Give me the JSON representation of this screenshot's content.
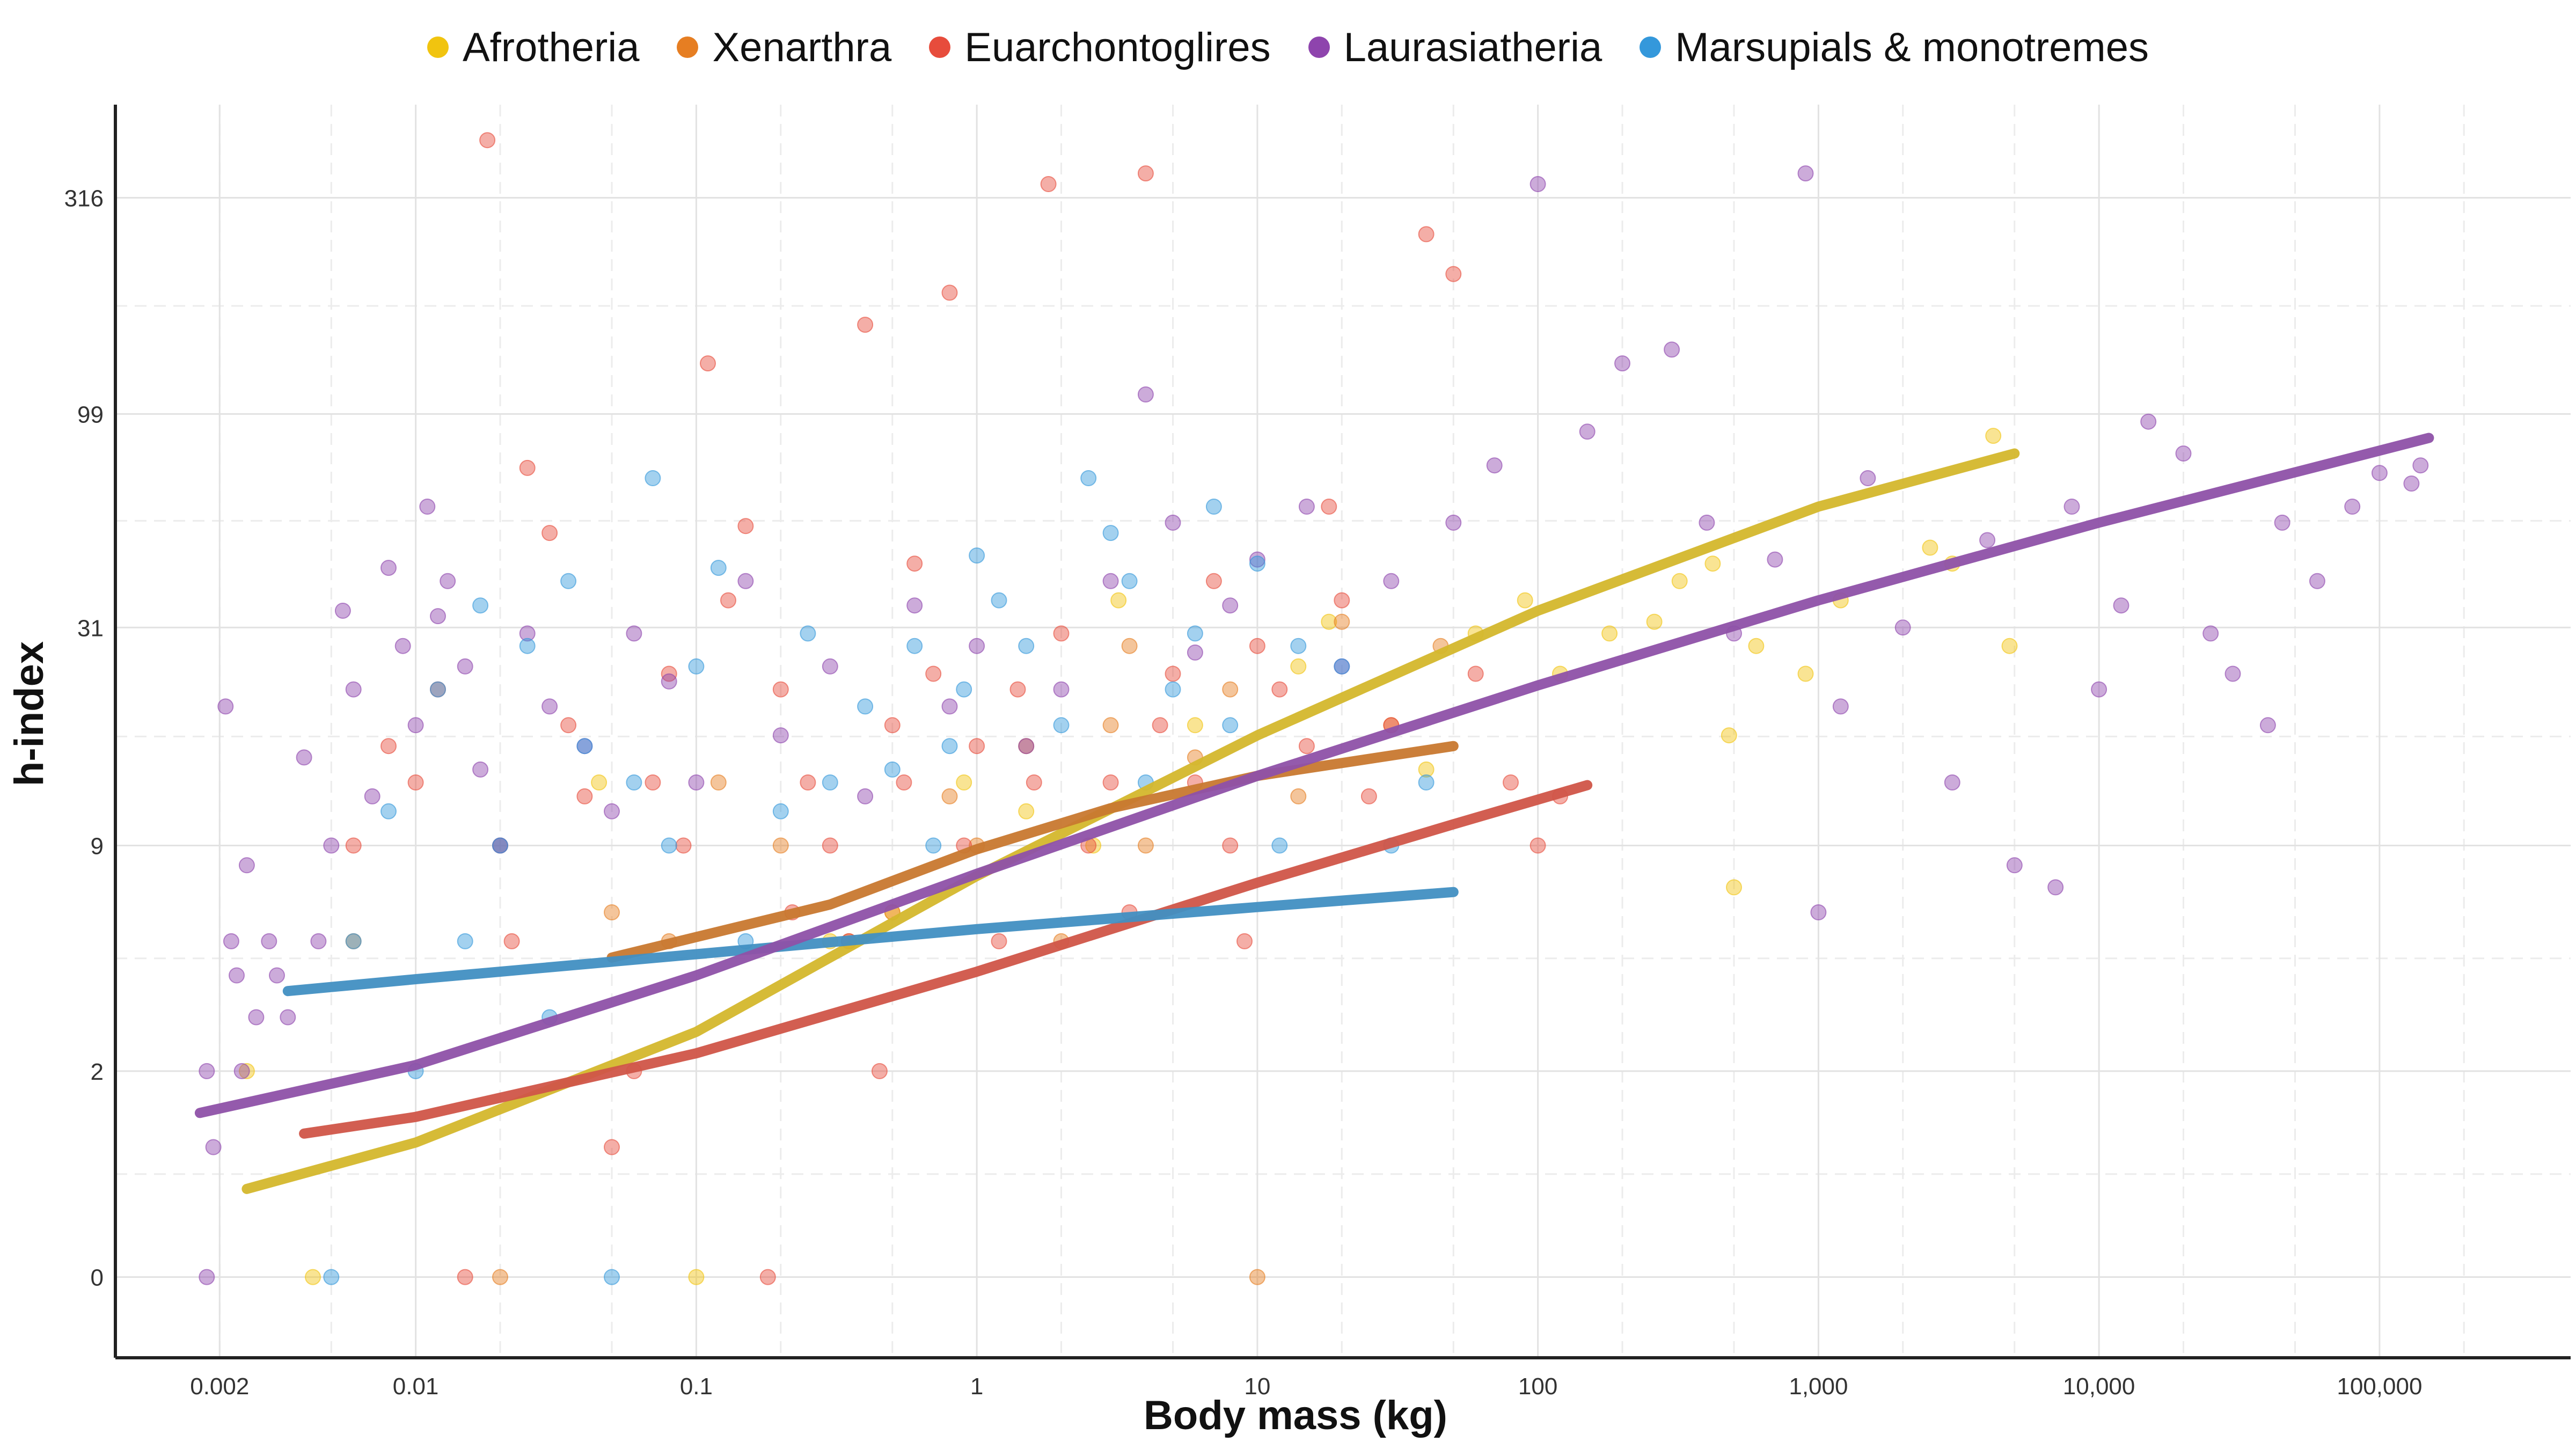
{
  "chart_data": {
    "type": "scatter",
    "x_scale": "log",
    "y_scale": "log1p",
    "xlabel": "Body mass (kg)",
    "ylabel": "h-index",
    "xlim": [
      0.00085,
      480000
    ],
    "ylim": [
      -0.35,
      520
    ],
    "x_ticks": [
      {
        "value": 0.002,
        "label": "0.002"
      },
      {
        "value": 0.01,
        "label": "0.01"
      },
      {
        "value": 0.1,
        "label": "0.1"
      },
      {
        "value": 1,
        "label": "1"
      },
      {
        "value": 10,
        "label": "10"
      },
      {
        "value": 100,
        "label": "100"
      },
      {
        "value": 1000,
        "label": "1,000"
      },
      {
        "value": 10000,
        "label": "10,000"
      },
      {
        "value": 100000,
        "label": "100,000"
      }
    ],
    "y_ticks": [
      {
        "value": 0,
        "label": "0"
      },
      {
        "value": 2,
        "label": "2"
      },
      {
        "value": 9,
        "label": "9"
      },
      {
        "value": 31,
        "label": "31"
      },
      {
        "value": 99,
        "label": "99"
      },
      {
        "value": 316,
        "label": "316"
      }
    ],
    "grid": true,
    "legend_position": "top",
    "series": [
      {
        "name": "Afrotheria",
        "color": "#F1C40F",
        "trend_color": "#D4B72C",
        "trend": {
          "x": [
            0.0025,
            0.01,
            0.1,
            1,
            10,
            100,
            1000,
            5000
          ],
          "y": [
            0.6,
            1.05,
            2.7,
            7.5,
            17,
            34,
            60,
            80
          ]
        },
        "points": [
          [
            0.0025,
            2
          ],
          [
            0.0043,
            0
          ],
          [
            0.045,
            13
          ],
          [
            0.1,
            0
          ],
          [
            0.3,
            5
          ],
          [
            0.5,
            6
          ],
          [
            0.9,
            13
          ],
          [
            1.5,
            11
          ],
          [
            2.6,
            9
          ],
          [
            3.2,
            36
          ],
          [
            6,
            18
          ],
          [
            14,
            25
          ],
          [
            18,
            32
          ],
          [
            40,
            14
          ],
          [
            60,
            30
          ],
          [
            90,
            36
          ],
          [
            120,
            24
          ],
          [
            180,
            30
          ],
          [
            260,
            32
          ],
          [
            320,
            40
          ],
          [
            420,
            44
          ],
          [
            480,
            17
          ],
          [
            500,
            7
          ],
          [
            600,
            28
          ],
          [
            900,
            24
          ],
          [
            1200,
            36
          ],
          [
            2500,
            48
          ],
          [
            4200,
            88
          ],
          [
            4800,
            28
          ],
          [
            3000,
            44
          ]
        ]
      },
      {
        "name": "Xenarthra",
        "color": "#E67E22",
        "trend_color": "#C8782F",
        "trend": {
          "x": [
            0.05,
            0.3,
            1,
            3,
            10,
            50
          ],
          "y": [
            4.5,
            6.3,
            8.8,
            11.2,
            13.5,
            16
          ]
        },
        "points": [
          [
            0.006,
            5
          ],
          [
            0.02,
            0
          ],
          [
            0.05,
            6
          ],
          [
            0.08,
            5
          ],
          [
            0.12,
            13
          ],
          [
            0.2,
            9
          ],
          [
            0.35,
            5
          ],
          [
            0.5,
            6
          ],
          [
            0.8,
            12
          ],
          [
            1,
            9
          ],
          [
            1.5,
            16
          ],
          [
            2,
            5
          ],
          [
            3,
            18
          ],
          [
            3.5,
            28
          ],
          [
            4,
            9
          ],
          [
            6,
            15
          ],
          [
            8,
            22
          ],
          [
            10,
            0
          ],
          [
            14,
            12
          ],
          [
            20,
            32
          ],
          [
            30,
            18
          ],
          [
            45,
            28
          ]
        ]
      },
      {
        "name": "Euarchontoglires",
        "color": "#E74C3C",
        "trend_color": "#D05548",
        "trend": {
          "x": [
            0.004,
            0.01,
            0.1,
            1,
            10,
            50,
            150
          ],
          "y": [
            1.15,
            1.35,
            2.3,
            4.1,
            7.2,
            10.2,
            12.8
          ]
        },
        "points": [
          [
            0.018,
            430
          ],
          [
            0.006,
            9
          ],
          [
            0.008,
            16
          ],
          [
            0.01,
            13
          ],
          [
            0.012,
            22
          ],
          [
            0.015,
            0
          ],
          [
            0.02,
            9
          ],
          [
            0.022,
            5
          ],
          [
            0.025,
            74
          ],
          [
            0.03,
            52
          ],
          [
            0.035,
            18
          ],
          [
            0.04,
            12
          ],
          [
            0.05,
            1
          ],
          [
            0.06,
            2
          ],
          [
            0.07,
            13
          ],
          [
            0.08,
            24
          ],
          [
            0.09,
            9
          ],
          [
            0.11,
            130
          ],
          [
            0.13,
            36
          ],
          [
            0.15,
            54
          ],
          [
            0.18,
            0
          ],
          [
            0.2,
            22
          ],
          [
            0.22,
            6
          ],
          [
            0.25,
            13
          ],
          [
            0.3,
            9
          ],
          [
            0.35,
            5
          ],
          [
            0.4,
            160
          ],
          [
            0.45,
            2
          ],
          [
            0.5,
            18
          ],
          [
            0.55,
            13
          ],
          [
            0.6,
            44
          ],
          [
            0.7,
            24
          ],
          [
            0.8,
            190
          ],
          [
            0.9,
            9
          ],
          [
            1,
            16
          ],
          [
            1.2,
            5
          ],
          [
            1.4,
            22
          ],
          [
            1.6,
            13
          ],
          [
            1.8,
            340
          ],
          [
            2,
            30
          ],
          [
            2.5,
            9
          ],
          [
            3,
            13
          ],
          [
            3.5,
            6
          ],
          [
            4,
            360
          ],
          [
            4.5,
            18
          ],
          [
            5,
            24
          ],
          [
            6,
            13
          ],
          [
            7,
            40
          ],
          [
            8,
            9
          ],
          [
            9,
            5
          ],
          [
            10,
            28
          ],
          [
            12,
            22
          ],
          [
            15,
            16
          ],
          [
            18,
            60
          ],
          [
            20,
            36
          ],
          [
            25,
            12
          ],
          [
            30,
            18
          ],
          [
            40,
            260
          ],
          [
            50,
            210
          ],
          [
            60,
            24
          ],
          [
            80,
            13
          ],
          [
            100,
            9
          ],
          [
            120,
            12
          ]
        ]
      },
      {
        "name": "Laurasiatheria",
        "color": "#8E44AD",
        "trend_color": "#8E51A8",
        "trend": {
          "x": [
            0.0017,
            0.01,
            0.1,
            1,
            10,
            100,
            1000,
            10000,
            150000
          ],
          "y": [
            1.4,
            2.1,
            4.0,
            7.6,
            13.5,
            22.5,
            36,
            55,
            87
          ]
        },
        "points": [
          [
            0.0018,
            0
          ],
          [
            0.0018,
            2
          ],
          [
            0.0019,
            1
          ],
          [
            0.0021,
            20
          ],
          [
            0.0022,
            5
          ],
          [
            0.0023,
            4
          ],
          [
            0.0024,
            2
          ],
          [
            0.0025,
            8
          ],
          [
            0.0027,
            3
          ],
          [
            0.003,
            5
          ],
          [
            0.0032,
            4
          ],
          [
            0.0035,
            3
          ],
          [
            0.004,
            15
          ],
          [
            0.0045,
            5
          ],
          [
            0.005,
            9
          ],
          [
            0.0055,
            34
          ],
          [
            0.006,
            22
          ],
          [
            0.007,
            12
          ],
          [
            0.008,
            43
          ],
          [
            0.009,
            28
          ],
          [
            0.01,
            18
          ],
          [
            0.011,
            60
          ],
          [
            0.012,
            33
          ],
          [
            0.013,
            40
          ],
          [
            0.015,
            25
          ],
          [
            0.017,
            14
          ],
          [
            0.02,
            9
          ],
          [
            0.025,
            30
          ],
          [
            0.03,
            20
          ],
          [
            0.04,
            16
          ],
          [
            0.05,
            11
          ],
          [
            0.06,
            30
          ],
          [
            0.08,
            23
          ],
          [
            0.1,
            13
          ],
          [
            0.15,
            40
          ],
          [
            0.2,
            17
          ],
          [
            0.3,
            25
          ],
          [
            0.4,
            12
          ],
          [
            0.6,
            35
          ],
          [
            0.8,
            20
          ],
          [
            1,
            28
          ],
          [
            1.5,
            16
          ],
          [
            2,
            22
          ],
          [
            3,
            40
          ],
          [
            4,
            110
          ],
          [
            5,
            55
          ],
          [
            6,
            27
          ],
          [
            8,
            35
          ],
          [
            10,
            45
          ],
          [
            15,
            60
          ],
          [
            20,
            25
          ],
          [
            30,
            40
          ],
          [
            50,
            55
          ],
          [
            70,
            75
          ],
          [
            100,
            340
          ],
          [
            150,
            90
          ],
          [
            200,
            130
          ],
          [
            300,
            140
          ],
          [
            400,
            55
          ],
          [
            500,
            30
          ],
          [
            700,
            45
          ],
          [
            900,
            360
          ],
          [
            1000,
            6
          ],
          [
            1200,
            20
          ],
          [
            1500,
            70
          ],
          [
            2000,
            31
          ],
          [
            3000,
            13
          ],
          [
            4000,
            50
          ],
          [
            5000,
            8
          ],
          [
            7000,
            7
          ],
          [
            8000,
            60
          ],
          [
            10000,
            22
          ],
          [
            12000,
            35
          ],
          [
            15000,
            95
          ],
          [
            20000,
            80
          ],
          [
            25000,
            30
          ],
          [
            30000,
            24
          ],
          [
            40000,
            18
          ],
          [
            45000,
            55
          ],
          [
            60000,
            40
          ],
          [
            80000,
            60
          ],
          [
            100000,
            72
          ],
          [
            130000,
            68
          ],
          [
            140000,
            75
          ]
        ]
      },
      {
        "name": "Marsupials & monotremes",
        "color": "#3498DB",
        "trend_color": "#418FC2",
        "trend": {
          "x": [
            0.0035,
            0.01,
            0.1,
            1,
            10,
            50
          ],
          "y": [
            3.6,
            3.9,
            4.6,
            5.4,
            6.2,
            6.8
          ]
        },
        "points": [
          [
            0.005,
            0
          ],
          [
            0.006,
            5
          ],
          [
            0.008,
            11
          ],
          [
            0.01,
            2
          ],
          [
            0.012,
            22
          ],
          [
            0.015,
            5
          ],
          [
            0.017,
            35
          ],
          [
            0.02,
            9
          ],
          [
            0.025,
            28
          ],
          [
            0.03,
            3
          ],
          [
            0.035,
            40
          ],
          [
            0.04,
            16
          ],
          [
            0.05,
            0
          ],
          [
            0.06,
            13
          ],
          [
            0.07,
            70
          ],
          [
            0.08,
            9
          ],
          [
            0.1,
            25
          ],
          [
            0.12,
            43
          ],
          [
            0.15,
            5
          ],
          [
            0.2,
            11
          ],
          [
            0.25,
            30
          ],
          [
            0.3,
            13
          ],
          [
            0.4,
            20
          ],
          [
            0.5,
            14
          ],
          [
            0.6,
            28
          ],
          [
            0.7,
            9
          ],
          [
            0.8,
            16
          ],
          [
            0.9,
            22
          ],
          [
            1,
            46
          ],
          [
            1.2,
            36
          ],
          [
            1.5,
            28
          ],
          [
            2,
            18
          ],
          [
            2.5,
            70
          ],
          [
            3,
            52
          ],
          [
            3.5,
            40
          ],
          [
            4,
            13
          ],
          [
            5,
            22
          ],
          [
            6,
            30
          ],
          [
            7,
            60
          ],
          [
            8,
            18
          ],
          [
            10,
            44
          ],
          [
            12,
            9
          ],
          [
            14,
            28
          ],
          [
            20,
            25
          ],
          [
            30,
            9
          ],
          [
            40,
            13
          ]
        ]
      }
    ]
  }
}
